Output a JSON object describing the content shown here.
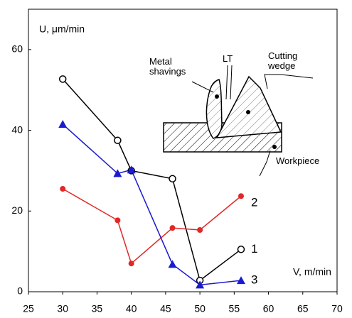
{
  "chart_data": {
    "type": "line",
    "y_label": "U, μm/min",
    "x_label": "V, m/min",
    "x": [
      30,
      38,
      40,
      46,
      50,
      56
    ],
    "series": [
      {
        "name": "1",
        "color": "#000000",
        "marker": "open-circle",
        "values": [
          52.7,
          37.5,
          30,
          28,
          2.8,
          10.5
        ]
      },
      {
        "name": "2",
        "color": "#e02828",
        "marker": "circle",
        "values": [
          25.5,
          17.7,
          7,
          15.8,
          15.3,
          23.7
        ]
      },
      {
        "name": "3",
        "color": "#1a1ad0",
        "marker": "triangle",
        "values": [
          41.5,
          29.3,
          30.2,
          6.8,
          1.7,
          2.8
        ]
      }
    ],
    "xlim": [
      25,
      70
    ],
    "xticks": [
      25,
      30,
      35,
      40,
      45,
      50,
      55,
      60,
      65,
      70
    ],
    "ylim": [
      0,
      70
    ],
    "yticks": [
      0,
      20,
      40,
      60
    ],
    "annotations": [
      "Metal shavings",
      "LT",
      "Cutting wedge",
      "Workpiece"
    ]
  }
}
